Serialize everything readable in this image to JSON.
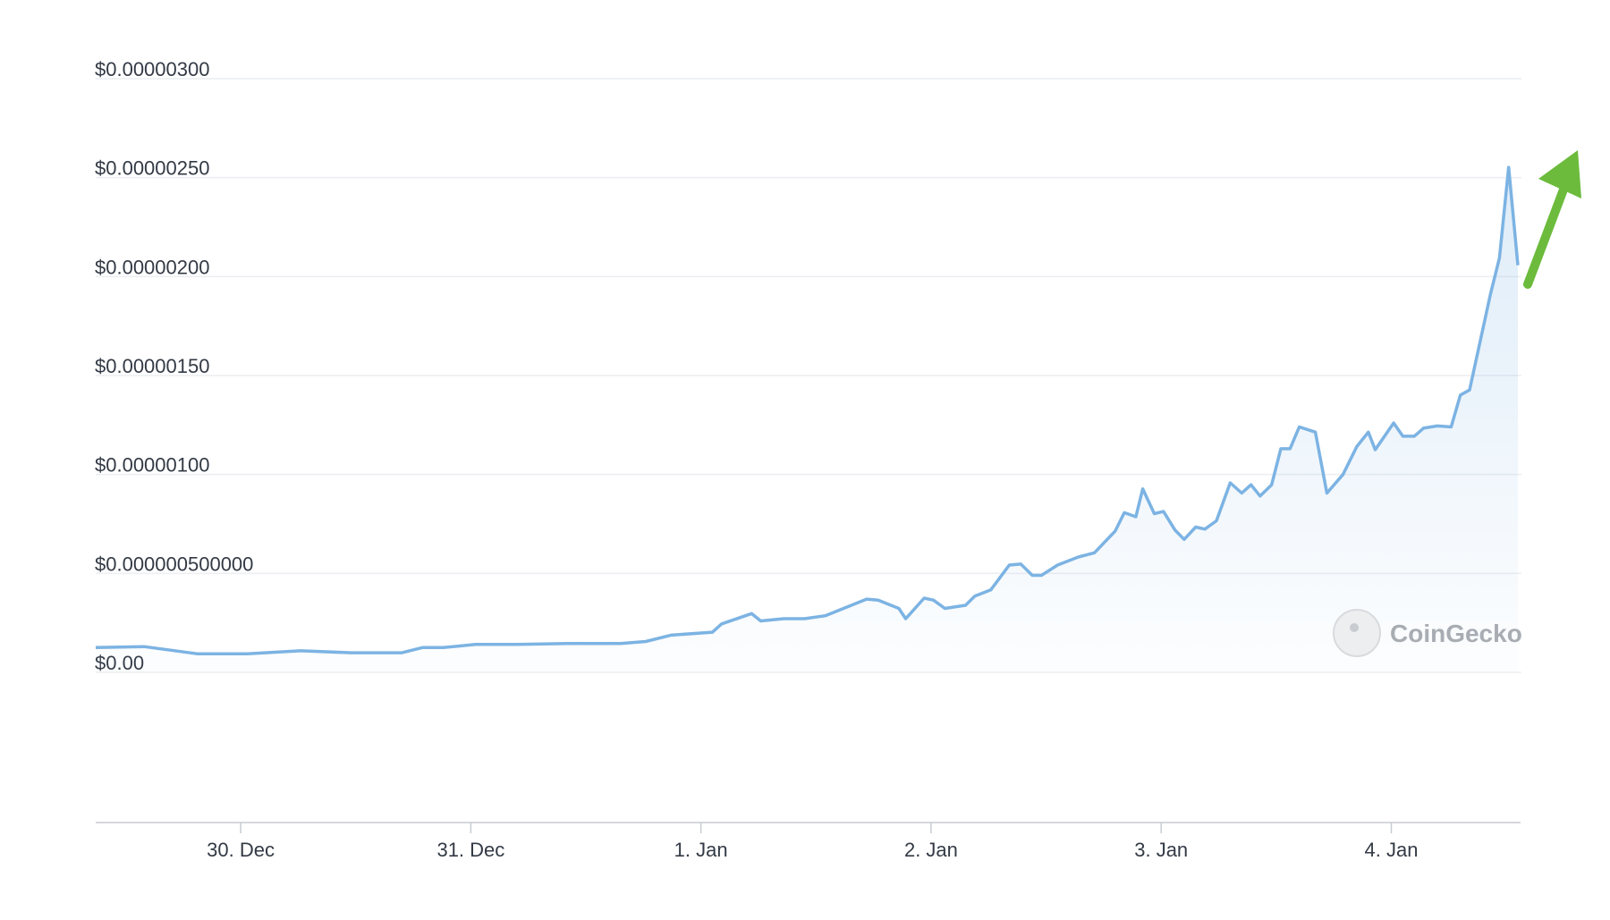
{
  "chart_data": {
    "type": "area",
    "watermark": "CoinGecko",
    "xlim": [
      29.37,
      35.55
    ],
    "xticks": [
      {
        "value": 30,
        "label": "30. Dec"
      },
      {
        "value": 31,
        "label": "31. Dec"
      },
      {
        "value": 32,
        "label": "1. Jan"
      },
      {
        "value": 33,
        "label": "2. Jan"
      },
      {
        "value": 34,
        "label": "3. Jan"
      },
      {
        "value": 35,
        "label": "4. Jan"
      }
    ],
    "ylim": [
      0,
      3e-06
    ],
    "yticks": [
      {
        "value": 0,
        "label": "$0.00"
      },
      {
        "value": 5e-07,
        "label": "$0.000000500000"
      },
      {
        "value": 1e-06,
        "label": "$0.00000100"
      },
      {
        "value": 1.5e-06,
        "label": "$0.00000150"
      },
      {
        "value": 2e-06,
        "label": "$0.00000200"
      },
      {
        "value": 2.5e-06,
        "label": "$0.00000250"
      },
      {
        "value": 3e-06,
        "label": "$0.00000300"
      }
    ],
    "grid": true,
    "series": [
      {
        "color": "#7cb3e3",
        "x": [
          29.37,
          29.58,
          29.81,
          30.03,
          30.26,
          30.48,
          30.7,
          30.79,
          30.88,
          31.02,
          31.2,
          31.42,
          31.65,
          31.76,
          31.87,
          32.05,
          32.09,
          32.22,
          32.26,
          32.36,
          32.45,
          32.54,
          32.72,
          32.77,
          32.86,
          32.89,
          32.97,
          33.01,
          33.06,
          33.15,
          33.19,
          33.26,
          33.34,
          33.39,
          33.44,
          33.48,
          33.55,
          33.64,
          33.71,
          33.8,
          33.84,
          33.89,
          33.92,
          33.97,
          34.01,
          34.06,
          34.1,
          34.15,
          34.19,
          34.24,
          34.3,
          34.35,
          34.39,
          34.43,
          34.48,
          34.52,
          34.56,
          34.6,
          34.67,
          34.72,
          34.79,
          34.85,
          34.9,
          34.93,
          35.01,
          35.05,
          35.1,
          35.14,
          35.2,
          35.26,
          35.3,
          35.34,
          35.43,
          35.47,
          35.51,
          35.55
        ],
        "values": [
          1.25e-07,
          1.3e-07,
          9.4e-08,
          9.4e-08,
          1.09e-07,
          9.9e-08,
          9.9e-08,
          1.25e-07,
          1.25e-07,
          1.41e-07,
          1.41e-07,
          1.46e-07,
          1.46e-07,
          1.56e-07,
          1.88e-07,
          2.03e-07,
          2.45e-07,
          2.97e-07,
          2.6e-07,
          2.71e-07,
          2.71e-07,
          2.86e-07,
          3.7e-07,
          3.65e-07,
          3.23e-07,
          2.71e-07,
          3.75e-07,
          3.65e-07,
          3.23e-07,
          3.39e-07,
          3.85e-07,
          4.17e-07,
          5.42e-07,
          5.47e-07,
          4.9e-07,
          4.9e-07,
          5.42e-07,
          5.83e-07,
          6.04e-07,
          7.14e-07,
          8.07e-07,
          7.86e-07,
          9.27e-07,
          8.02e-07,
          8.13e-07,
          7.19e-07,
          6.72e-07,
          7.34e-07,
          7.24e-07,
          7.66e-07,
          9.58e-07,
          9.06e-07,
          9.48e-07,
          8.91e-07,
          9.48e-07,
          1.13e-06,
          1.13e-06,
          1.24e-06,
          1.214e-06,
          9.06e-07,
          1e-06,
          1.141e-06,
          1.214e-06,
          1.125e-06,
          1.26e-06,
          1.193e-06,
          1.193e-06,
          1.234e-06,
          1.245e-06,
          1.24e-06,
          1.401e-06,
          1.427e-06,
          1.906e-06,
          2.094e-06,
          2.552e-06,
          2.057e-06
        ]
      }
    ]
  }
}
